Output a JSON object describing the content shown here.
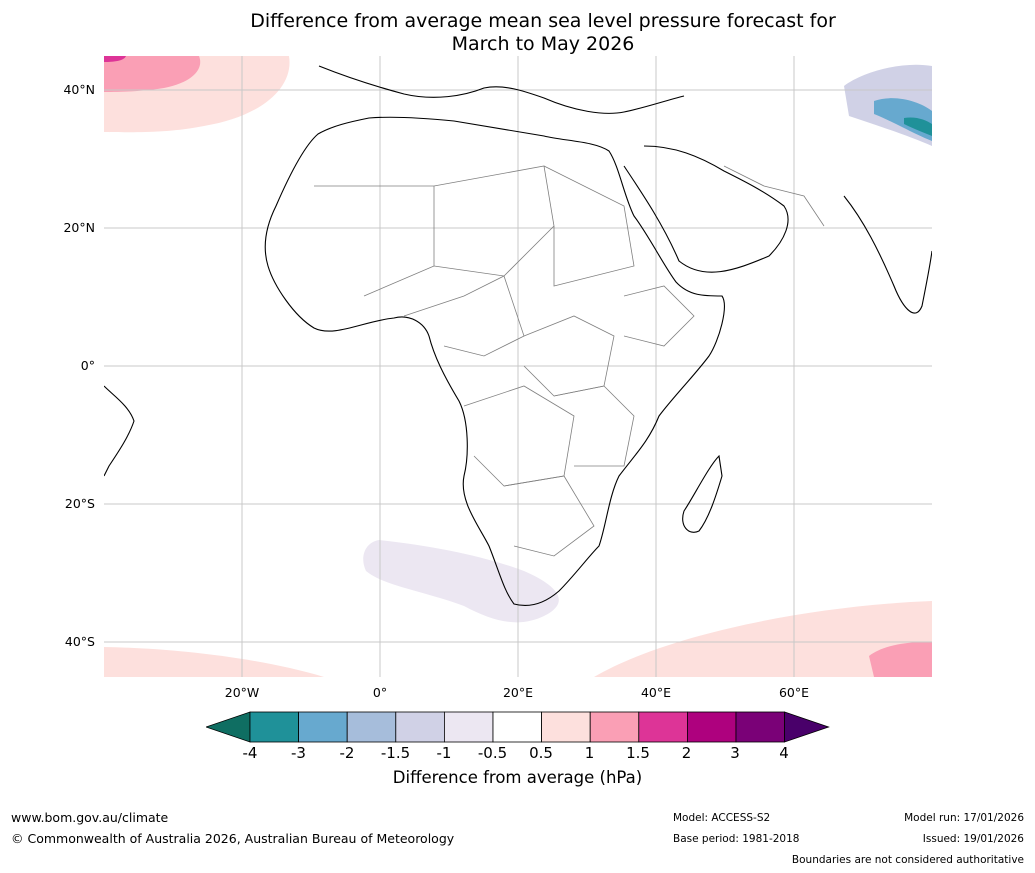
{
  "title_line1": "Difference from average mean sea level pressure forecast for",
  "title_line2": "March to May 2026",
  "latitude_labels": [
    "40°N",
    "20°N",
    "0°",
    "20°S",
    "40°S"
  ],
  "longitude_labels": [
    "20°W",
    "0°",
    "20°E",
    "40°E",
    "60°E"
  ],
  "legend": {
    "title": "Difference from average (hPa)",
    "ticks": [
      "-4",
      "-3",
      "-2",
      "-1.5",
      "-1",
      "-0.5",
      "0.5",
      "1",
      "1.5",
      "2",
      "3",
      "4"
    ],
    "colors": [
      "#0f6e62",
      "#1f9199",
      "#67a9cf",
      "#a6bddb",
      "#d0d1e6",
      "#ece7f2",
      "#ffffff",
      "#fde0dd",
      "#fa9fb5",
      "#dd3497",
      "#ae017e",
      "#7a0177",
      "#49006a"
    ]
  },
  "footer": {
    "website": "www.bom.gov.au/climate",
    "copyright": "© Commonwealth of Australia 2026, Australian Bureau of Meteorology",
    "model": "Model: ACCESS-S2",
    "base_period": "Base period: 1981-2018",
    "model_run": "Model run: 17/01/2026",
    "issued": "Issued: 19/01/2026",
    "disclaimer": "Boundaries are not considered authoritative"
  }
}
